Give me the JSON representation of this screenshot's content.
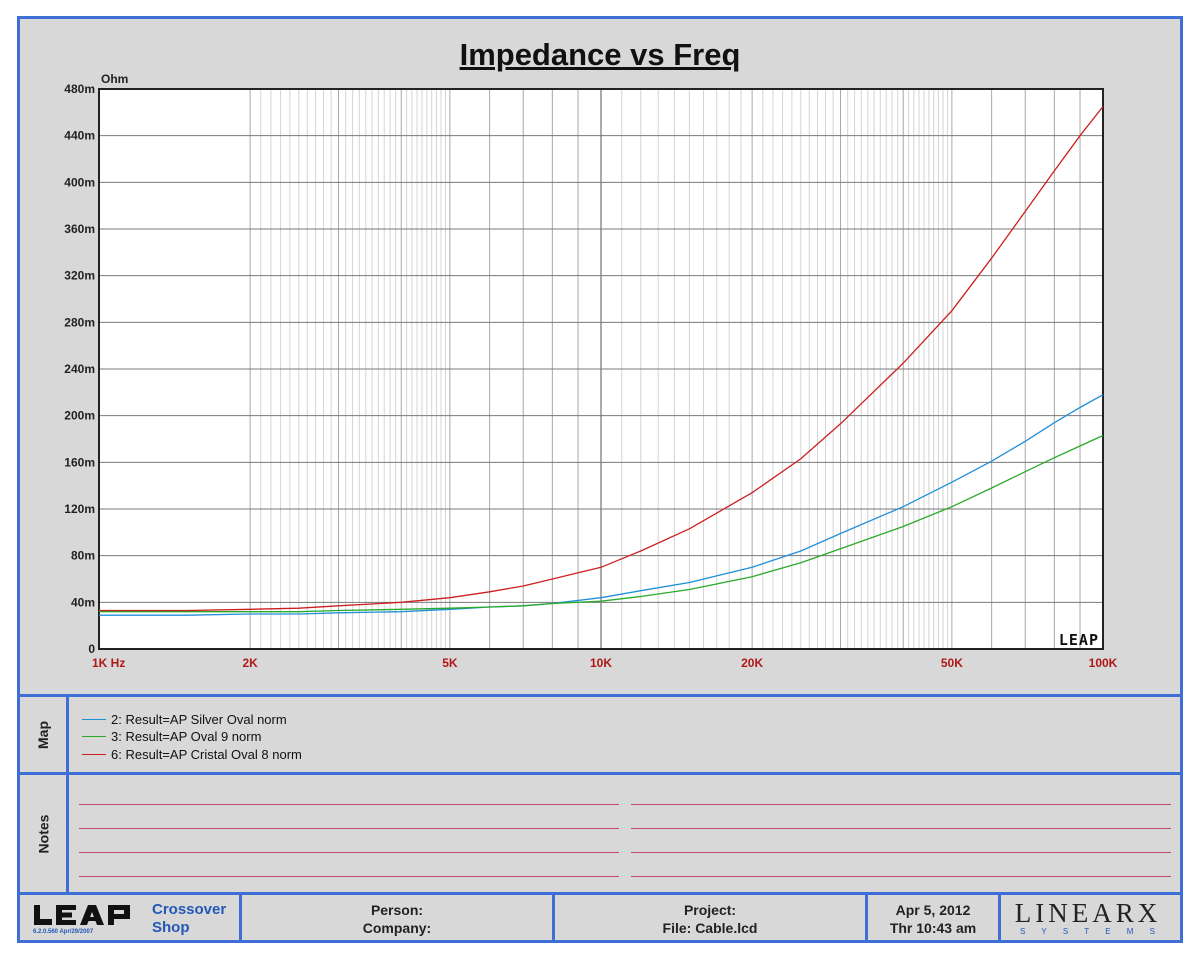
{
  "title": "Impedance vs Freq",
  "chart_data": {
    "type": "line",
    "title": "Impedance vs Freq",
    "ylabel": "Ohm",
    "xlabel": "",
    "x_scale": "log",
    "xlim": [
      1000,
      100000
    ],
    "ylim": [
      0,
      480
    ],
    "y_unit": "m",
    "x_tick_labels": [
      {
        "value": 1000,
        "label": "1K  Hz"
      },
      {
        "value": 2000,
        "label": "2K"
      },
      {
        "value": 5000,
        "label": "5K"
      },
      {
        "value": 10000,
        "label": "10K"
      },
      {
        "value": 20000,
        "label": "20K"
      },
      {
        "value": 50000,
        "label": "50K"
      },
      {
        "value": 100000,
        "label": "100K"
      }
    ],
    "y_tick_labels": [
      "480m",
      "440m",
      "400m",
      "360m",
      "320m",
      "280m",
      "240m",
      "200m",
      "160m",
      "120m",
      "80m",
      "40m",
      "0"
    ],
    "y_ticks": [
      480,
      440,
      400,
      360,
      320,
      280,
      240,
      200,
      160,
      120,
      80,
      40,
      0
    ],
    "grid": true,
    "watermark": "LEAP",
    "series": [
      {
        "name": "2: Result=AP Silver Oval norm",
        "color": "#1f8fd8",
        "x": [
          1000,
          1500,
          2000,
          2500,
          3000,
          4000,
          5000,
          6000,
          7000,
          8000,
          10000,
          12000,
          15000,
          20000,
          25000,
          30000,
          40000,
          50000,
          60000,
          70000,
          80000,
          90000,
          100000
        ],
        "y": [
          29,
          29,
          30,
          30,
          31,
          32,
          34,
          36,
          37,
          39,
          44,
          50,
          57,
          70,
          84,
          99,
          122,
          143,
          161,
          178,
          194,
          207,
          218
        ]
      },
      {
        "name": "3: Result=AP Oval 9 norm",
        "color": "#2aaa2a",
        "x": [
          1000,
          1500,
          2000,
          2500,
          3000,
          4000,
          5000,
          6000,
          7000,
          8000,
          10000,
          12000,
          15000,
          20000,
          25000,
          30000,
          40000,
          50000,
          60000,
          70000,
          80000,
          90000,
          100000
        ],
        "y": [
          32,
          32,
          32,
          32,
          33,
          34,
          35,
          36,
          37,
          39,
          41,
          45,
          51,
          62,
          74,
          86,
          105,
          122,
          138,
          152,
          164,
          174,
          183
        ]
      },
      {
        "name": "6: Result=AP Cristal Oval 8 norm",
        "color": "#cc1f1f",
        "x": [
          1000,
          1500,
          2000,
          2500,
          3000,
          4000,
          5000,
          6000,
          7000,
          8000,
          10000,
          12000,
          15000,
          20000,
          25000,
          30000,
          40000,
          50000,
          60000,
          70000,
          80000,
          90000,
          100000
        ],
        "y": [
          33,
          33,
          34,
          35,
          37,
          40,
          44,
          49,
          54,
          60,
          70,
          84,
          103,
          134,
          163,
          193,
          245,
          290,
          335,
          375,
          410,
          440,
          465
        ]
      }
    ]
  },
  "map_label": "Map",
  "notes_label": "Notes",
  "legend": [
    "2: Result=AP Silver Oval norm",
    "3: Result=AP Oval 9 norm",
    "6: Result=AP Cristal Oval 8 norm"
  ],
  "footer": {
    "logo_text": "LEAP",
    "version": "6.2.0.560  Apr/29/2007",
    "shop_line1": "Crossover",
    "shop_line2": "Shop",
    "person_label": "Person:",
    "company_label": "Company:",
    "project_label": "Project:",
    "file_label": "File: Cable.lcd",
    "date": "Apr  5, 2012",
    "time": "Thr 10:43 am",
    "brand": "LINEARX",
    "brand_sub": "S Y S T E M S"
  },
  "colors": {
    "frame_border": "#3f6fd6",
    "panel_bg": "#d8d8d8",
    "tick_label": "#b01818",
    "note_line": "#c8466a"
  }
}
